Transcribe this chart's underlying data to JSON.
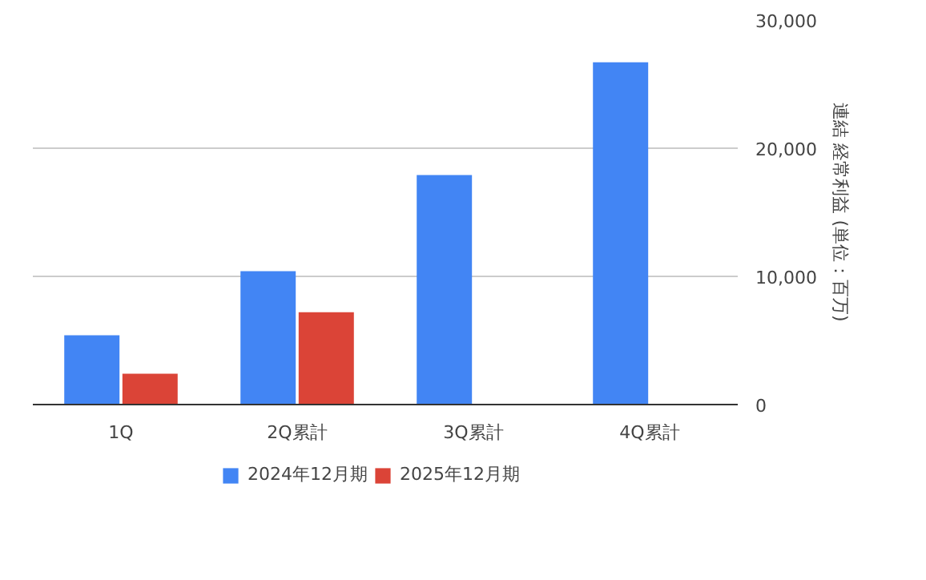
{
  "chart_data": {
    "type": "bar",
    "categories": [
      "1Q",
      "2Q累計",
      "3Q累計",
      "4Q累計"
    ],
    "series": [
      {
        "name": "2024年12月期",
        "color": "#4285f4",
        "values": [
          5400,
          10400,
          17900,
          26700
        ]
      },
      {
        "name": "2025年12月期",
        "color": "#db4437",
        "values": [
          2400,
          7200,
          null,
          null
        ]
      }
    ],
    "ylabel": "連結 経常利益 (単位：百万)",
    "ylim": [
      0,
      30000
    ],
    "yticks": [
      {
        "value": 0,
        "label": "0"
      },
      {
        "value": 10000,
        "label": "10,000"
      },
      {
        "value": 20000,
        "label": "20,000"
      },
      {
        "value": 30000,
        "label": "30,000"
      }
    ],
    "grid": "y",
    "legend": "bottom"
  }
}
